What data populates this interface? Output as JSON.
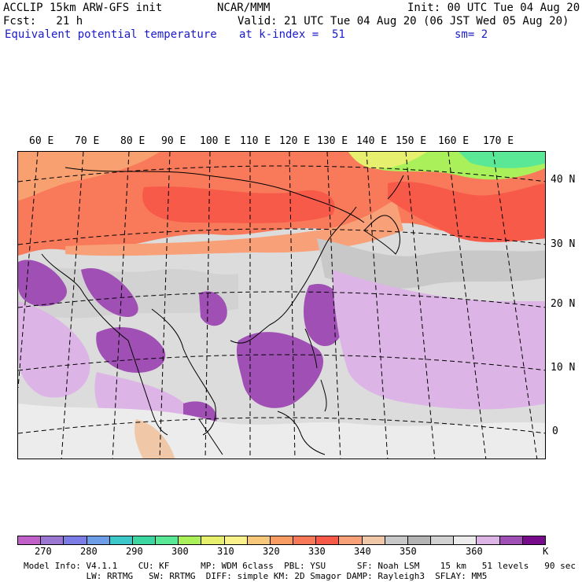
{
  "header": {
    "line1_left": "ACCLIP 15km ARW-GFS init",
    "line1_center": "NCAR/MMM",
    "line1_right": "Init: 00 UTC Tue 04 Aug 20",
    "line2_left": "Fcst:   21 h",
    "line2_right": "Valid: 21 UTC Tue 04 Aug 20 (06 JST Wed 05 Aug 20)",
    "line3_left": "Equivalent potential temperature",
    "line3_center": "at k-index =  51",
    "line3_right": "sm= 2"
  },
  "map": {
    "lon_labels": [
      "60 E",
      "70 E",
      "80 E",
      "90 E",
      "100 E",
      "110 E",
      "120 E",
      "130 E",
      "140 E",
      "150 E",
      "160 E",
      "170 E"
    ],
    "lat_labels": [
      "40 N",
      "30 N",
      "20 N",
      "10 N",
      "0"
    ]
  },
  "colorbar": {
    "colors": [
      "#c060c8",
      "#9a78d2",
      "#7c7ce6",
      "#6e9ee8",
      "#3cc8c8",
      "#3cd7a0",
      "#5ae896",
      "#aaf05a",
      "#e6f06e",
      "#faf08c",
      "#f8c87a",
      "#f89c64",
      "#f8785a",
      "#f85a4a",
      "#f8a078",
      "#f0c8a8",
      "#c8c8c8",
      "#b4b4b4",
      "#d2d2d2",
      "#ececec",
      "#dcb4e6",
      "#a050b4",
      "#780a8c"
    ],
    "tick_labels": [
      "270",
      "280",
      "290",
      "300",
      "310",
      "320",
      "330",
      "340",
      "350",
      "360",
      "K"
    ]
  },
  "footer": {
    "line1": "Model Info: V4.1.1    CU: KF      MP: WDM 6class  PBL: YSU      SF: Noah LSM    15 km   51 levels   90 sec",
    "line2": "            LW: RRTMG   SW: RRTMG  DIFF: simple KM: 2D Smagor DAMP: Rayleigh3  SFLAY: MM5"
  }
}
